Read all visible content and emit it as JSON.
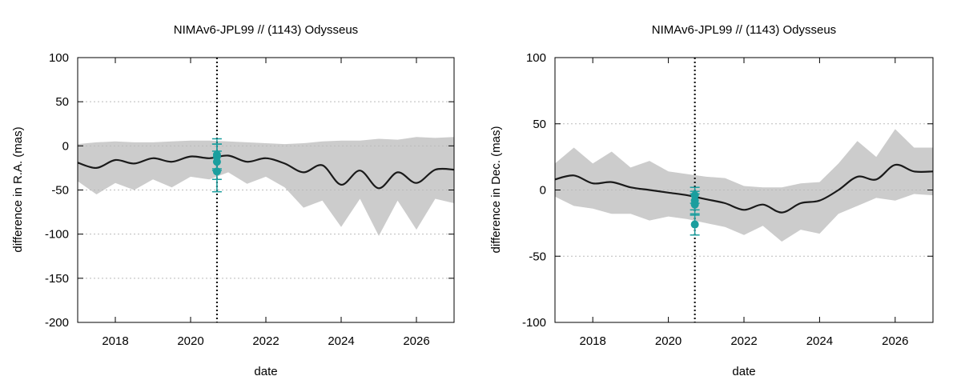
{
  "chart_data": [
    {
      "type": "line",
      "title": "NIMAv6-JPL99 // (1143) Odysseus",
      "xlabel": "date",
      "ylabel": "difference in R.A. (mas)",
      "xlim": [
        2017.0,
        2027.0
      ],
      "ylim": [
        -200,
        100
      ],
      "xticks": [
        2018,
        2020,
        2022,
        2024,
        2026
      ],
      "yticks": [
        -200,
        -150,
        -100,
        -50,
        0,
        50,
        100
      ],
      "grid": true,
      "vline_x": 2020.7,
      "colors": {
        "band": "#cccccc",
        "line": "#1a1a1a",
        "obs": "#1a9e9e",
        "grid": "#bbbbbb"
      },
      "series": [
        {
          "kind": "uncertainty-band",
          "x": [
            2017.0,
            2017.5,
            2018.0,
            2018.5,
            2019.0,
            2019.5,
            2020.0,
            2020.5,
            2021.0,
            2021.5,
            2022.0,
            2022.5,
            2023.0,
            2023.5,
            2024.0,
            2024.5,
            2025.0,
            2025.5,
            2026.0,
            2026.5,
            2027.0
          ],
          "upper": [
            2,
            4,
            5,
            4,
            4,
            5,
            6,
            6,
            5,
            4,
            3,
            2,
            3,
            5,
            6,
            6,
            8,
            7,
            10,
            9,
            10
          ],
          "lower": [
            -40,
            -55,
            -42,
            -50,
            -38,
            -47,
            -35,
            -38,
            -30,
            -43,
            -35,
            -47,
            -70,
            -62,
            -92,
            -60,
            -102,
            -62,
            -95,
            -60,
            -65
          ]
        },
        {
          "kind": "nominal",
          "x": [
            2017.0,
            2017.5,
            2018.0,
            2018.5,
            2019.0,
            2019.5,
            2020.0,
            2020.5,
            2021.0,
            2021.5,
            2022.0,
            2022.5,
            2023.0,
            2023.5,
            2024.0,
            2024.5,
            2025.0,
            2025.5,
            2026.0,
            2026.5,
            2027.0
          ],
          "y": [
            -19,
            -25,
            -16,
            -20,
            -14,
            -18,
            -12,
            -14,
            -11,
            -18,
            -14,
            -20,
            -30,
            -22,
            -44,
            -28,
            -48,
            -30,
            -42,
            -27,
            -27
          ]
        },
        {
          "kind": "observations",
          "x": [
            2020.7,
            2020.7,
            2020.7,
            2020.7
          ],
          "y": [
            -10,
            -12,
            -18,
            -29
          ],
          "yerr": [
            18,
            14,
            20,
            23
          ]
        }
      ]
    },
    {
      "type": "line",
      "title": "NIMAv6-JPL99 // (1143) Odysseus",
      "xlabel": "date",
      "ylabel": "difference in Dec. (mas)",
      "xlim": [
        2017.0,
        2027.0
      ],
      "ylim": [
        -100,
        100
      ],
      "xticks": [
        2018,
        2020,
        2022,
        2024,
        2026
      ],
      "yticks": [
        -100,
        -50,
        0,
        50,
        100
      ],
      "grid": true,
      "vline_x": 2020.7,
      "colors": {
        "band": "#cccccc",
        "line": "#1a1a1a",
        "obs": "#1a9e9e",
        "grid": "#bbbbbb"
      },
      "series": [
        {
          "kind": "uncertainty-band",
          "x": [
            2017.0,
            2017.5,
            2018.0,
            2018.5,
            2019.0,
            2019.5,
            2020.0,
            2020.5,
            2021.0,
            2021.5,
            2022.0,
            2022.5,
            2023.0,
            2023.5,
            2024.0,
            2024.5,
            2025.0,
            2025.5,
            2026.0,
            2026.5,
            2027.0
          ],
          "upper": [
            20,
            32,
            20,
            29,
            17,
            22,
            14,
            12,
            10,
            9,
            3,
            2,
            2,
            5,
            6,
            20,
            37,
            25,
            46,
            32,
            32
          ],
          "lower": [
            -5,
            -12,
            -14,
            -18,
            -18,
            -23,
            -20,
            -22,
            -25,
            -28,
            -34,
            -27,
            -39,
            -30,
            -33,
            -18,
            -12,
            -6,
            -8,
            -3,
            -4
          ]
        },
        {
          "kind": "nominal",
          "x": [
            2017.0,
            2017.5,
            2018.0,
            2018.5,
            2019.0,
            2019.5,
            2020.0,
            2020.5,
            2021.0,
            2021.5,
            2022.0,
            2022.5,
            2023.0,
            2023.5,
            2024.0,
            2024.5,
            2025.0,
            2025.5,
            2026.0,
            2026.5,
            2027.0
          ],
          "y": [
            8,
            11,
            5,
            6,
            2,
            0,
            -2,
            -4,
            -7,
            -10,
            -15,
            -11,
            -17,
            -10,
            -8,
            0,
            10,
            8,
            19,
            14,
            14
          ]
        },
        {
          "kind": "observations",
          "x": [
            2020.7,
            2020.7,
            2020.7,
            2020.7
          ],
          "y": [
            -4,
            -8,
            -11,
            -26
          ],
          "yerr": [
            6,
            7,
            8,
            8
          ]
        }
      ]
    }
  ]
}
